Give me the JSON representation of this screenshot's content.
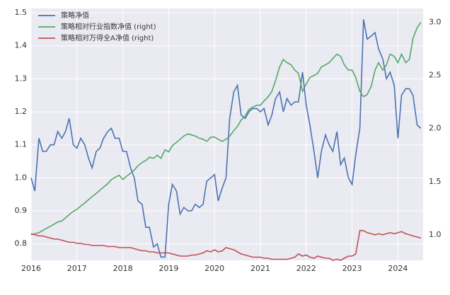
{
  "chart_data": {
    "type": "line",
    "x": [
      2016.0,
      2016.08,
      2016.17,
      2016.25,
      2016.33,
      2016.42,
      2016.5,
      2016.58,
      2016.67,
      2016.75,
      2016.83,
      2016.92,
      2017.0,
      2017.08,
      2017.17,
      2017.25,
      2017.33,
      2017.42,
      2017.5,
      2017.58,
      2017.67,
      2017.75,
      2017.83,
      2017.92,
      2018.0,
      2018.08,
      2018.17,
      2018.25,
      2018.33,
      2018.42,
      2018.5,
      2018.58,
      2018.67,
      2018.75,
      2018.83,
      2018.92,
      2019.0,
      2019.08,
      2019.17,
      2019.25,
      2019.33,
      2019.42,
      2019.5,
      2019.58,
      2019.67,
      2019.75,
      2019.83,
      2019.92,
      2020.0,
      2020.08,
      2020.17,
      2020.25,
      2020.33,
      2020.42,
      2020.5,
      2020.58,
      2020.67,
      2020.75,
      2020.83,
      2020.92,
      2021.0,
      2021.08,
      2021.17,
      2021.25,
      2021.33,
      2021.42,
      2021.5,
      2021.58,
      2021.67,
      2021.75,
      2021.83,
      2021.92,
      2022.0,
      2022.08,
      2022.17,
      2022.25,
      2022.33,
      2022.42,
      2022.5,
      2022.58,
      2022.67,
      2022.75,
      2022.83,
      2022.92,
      2023.0,
      2023.08,
      2023.17,
      2023.25,
      2023.33,
      2023.42,
      2023.5,
      2023.58,
      2023.67,
      2023.75,
      2023.83,
      2023.92,
      2024.0,
      2024.08,
      2024.17,
      2024.25,
      2024.33,
      2024.42,
      2024.5
    ],
    "series": [
      {
        "name": "策略净值",
        "color": "#4c72b0",
        "values": [
          1.0,
          0.96,
          1.12,
          1.08,
          1.08,
          1.1,
          1.1,
          1.14,
          1.12,
          1.14,
          1.18,
          1.1,
          1.09,
          1.12,
          1.1,
          1.06,
          1.03,
          1.08,
          1.09,
          1.12,
          1.14,
          1.15,
          1.12,
          1.12,
          1.08,
          1.08,
          1.03,
          1.0,
          0.93,
          0.92,
          0.85,
          0.85,
          0.79,
          0.8,
          0.76,
          0.76,
          0.92,
          0.98,
          0.96,
          0.89,
          0.91,
          0.9,
          0.9,
          0.92,
          0.91,
          0.92,
          0.99,
          1.0,
          1.01,
          0.93,
          0.97,
          1.0,
          1.18,
          1.26,
          1.28,
          1.19,
          1.18,
          1.2,
          1.21,
          1.21,
          1.2,
          1.21,
          1.16,
          1.19,
          1.24,
          1.26,
          1.2,
          1.24,
          1.22,
          1.23,
          1.23,
          1.32,
          1.22,
          1.16,
          1.08,
          1.0,
          1.08,
          1.13,
          1.1,
          1.08,
          1.14,
          1.04,
          1.06,
          1.0,
          0.98,
          1.07,
          1.15,
          1.48,
          1.42,
          1.43,
          1.44,
          1.39,
          1.36,
          1.3,
          1.32,
          1.28,
          1.12,
          1.25,
          1.27,
          1.27,
          1.25,
          1.16,
          1.15
        ]
      },
      {
        "name": "策略相对行业指数净值 (right)",
        "color": "#55a868",
        "axis": "y2",
        "values": [
          1.0,
          1.01,
          1.02,
          1.04,
          1.06,
          1.08,
          1.1,
          1.12,
          1.13,
          1.16,
          1.19,
          1.22,
          1.24,
          1.27,
          1.3,
          1.33,
          1.36,
          1.39,
          1.42,
          1.45,
          1.48,
          1.52,
          1.54,
          1.56,
          1.52,
          1.55,
          1.58,
          1.61,
          1.65,
          1.68,
          1.7,
          1.73,
          1.72,
          1.75,
          1.72,
          1.8,
          1.78,
          1.84,
          1.87,
          1.9,
          1.93,
          1.95,
          1.94,
          1.93,
          1.91,
          1.9,
          1.88,
          1.92,
          1.92,
          1.9,
          1.88,
          1.9,
          1.93,
          1.98,
          2.02,
          2.08,
          2.12,
          2.18,
          2.2,
          2.22,
          2.22,
          2.26,
          2.3,
          2.35,
          2.45,
          2.58,
          2.65,
          2.62,
          2.6,
          2.55,
          2.52,
          2.35,
          2.42,
          2.48,
          2.5,
          2.52,
          2.58,
          2.6,
          2.62,
          2.66,
          2.7,
          2.68,
          2.6,
          2.55,
          2.55,
          2.48,
          2.35,
          2.3,
          2.32,
          2.4,
          2.55,
          2.62,
          2.55,
          2.6,
          2.7,
          2.68,
          2.62,
          2.7,
          2.62,
          2.65,
          2.85,
          2.95,
          3.0
        ]
      },
      {
        "name": "策略相对万得全A净值 (right)",
        "color": "#c44e52",
        "axis": "y2",
        "values": [
          1.01,
          1.0,
          0.99,
          0.99,
          0.98,
          0.97,
          0.96,
          0.96,
          0.95,
          0.94,
          0.93,
          0.93,
          0.92,
          0.92,
          0.91,
          0.91,
          0.9,
          0.9,
          0.9,
          0.9,
          0.89,
          0.89,
          0.89,
          0.88,
          0.88,
          0.88,
          0.88,
          0.87,
          0.86,
          0.85,
          0.85,
          0.84,
          0.84,
          0.83,
          0.83,
          0.83,
          0.83,
          0.82,
          0.81,
          0.8,
          0.8,
          0.8,
          0.81,
          0.81,
          0.82,
          0.83,
          0.85,
          0.84,
          0.86,
          0.84,
          0.85,
          0.88,
          0.87,
          0.86,
          0.84,
          0.82,
          0.81,
          0.8,
          0.79,
          0.79,
          0.79,
          0.78,
          0.78,
          0.77,
          0.77,
          0.77,
          0.77,
          0.77,
          0.78,
          0.79,
          0.82,
          0.8,
          0.81,
          0.79,
          0.78,
          0.8,
          0.79,
          0.78,
          0.78,
          0.76,
          0.77,
          0.76,
          0.78,
          0.8,
          0.8,
          0.82,
          1.04,
          1.04,
          1.02,
          1.01,
          1.0,
          1.01,
          1.0,
          1.01,
          1.02,
          1.01,
          1.02,
          1.03,
          1.01,
          1.0,
          0.99,
          0.98,
          0.97
        ]
      }
    ],
    "xlim": [
      2016,
      2024.55
    ],
    "xticks": [
      2016,
      2017,
      2018,
      2019,
      2020,
      2021,
      2022,
      2023,
      2024
    ],
    "ylim": [
      0.75,
      1.513
    ],
    "yticks": [
      0.8,
      0.9,
      {
        "value": 1.0,
        "label": "1.0"
      },
      1.1,
      1.2,
      1.3,
      1.4,
      1.5
    ],
    "y2lim": [
      0.76,
      3.13
    ],
    "y2ticks": [
      {
        "value": 1.0,
        "label": "1.0"
      },
      1.5,
      {
        "value": 2.0,
        "label": "2.0"
      },
      2.5,
      {
        "value": 3.0,
        "label": "3.0"
      }
    ],
    "grid": true,
    "legend": "upper left"
  }
}
